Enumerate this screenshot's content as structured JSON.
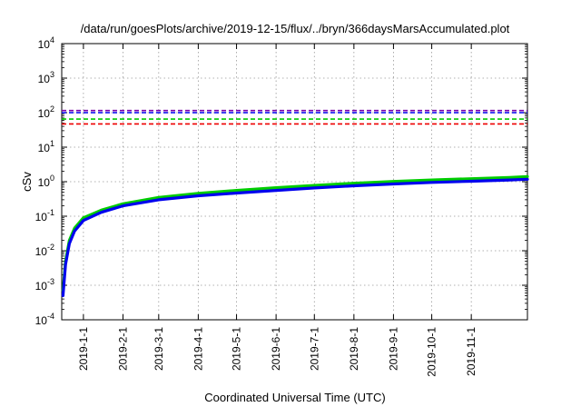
{
  "chart_data": {
    "type": "line",
    "title": "/data/run/goesPlots/archive/2019-12-15/flux/../bryn/366daysMarsAccumulated.plot",
    "xlabel": "Coordinated Universal Time (UTC)",
    "ylabel": "cSv",
    "yscale": "log",
    "ylim": [
      0.0001,
      10000
    ],
    "xlim": [
      "2018-12-15",
      "2019-12-15"
    ],
    "grid": true,
    "x_ticks": [
      "2019-1-1",
      "2019-2-1",
      "2019-3-1",
      "2019-4-1",
      "2019-5-1",
      "2019-6-1",
      "2019-7-1",
      "2019-8-1",
      "2019-9-1",
      "2019-10-1",
      "2019-11-1"
    ],
    "y_ticks": [
      {
        "base": "10",
        "exp": "-4"
      },
      {
        "base": "10",
        "exp": "-3"
      },
      {
        "base": "10",
        "exp": "-2"
      },
      {
        "base": "10",
        "exp": "-1"
      },
      {
        "base": "10",
        "exp": "0"
      },
      {
        "base": "10",
        "exp": "1"
      },
      {
        "base": "10",
        "exp": "2"
      },
      {
        "base": "10",
        "exp": "3"
      },
      {
        "base": "10",
        "exp": "4"
      }
    ],
    "x": [
      "2018-12-16",
      "2018-12-18",
      "2018-12-21",
      "2018-12-25",
      "2019-1-1",
      "2019-1-15",
      "2019-2-1",
      "2019-3-1",
      "2019-4-1",
      "2019-5-1",
      "2019-6-1",
      "2019-7-1",
      "2019-8-1",
      "2019-9-1",
      "2019-10-1",
      "2019-11-1",
      "2019-12-1",
      "2019-12-15"
    ],
    "series": [
      {
        "color": "#00cc00",
        "style": "solid",
        "values": [
          0.0007,
          0.005,
          0.02,
          0.045,
          0.09,
          0.15,
          0.23,
          0.35,
          0.46,
          0.56,
          0.67,
          0.78,
          0.9,
          1.02,
          1.12,
          1.22,
          1.32,
          1.4
        ]
      },
      {
        "color": "#0000ee",
        "style": "solid",
        "values": [
          0.0005,
          0.004,
          0.016,
          0.037,
          0.075,
          0.13,
          0.2,
          0.3,
          0.39,
          0.47,
          0.56,
          0.66,
          0.76,
          0.86,
          0.95,
          1.03,
          1.12,
          1.18
        ]
      },
      {
        "color": "#7700aa",
        "style": "dashed",
        "constant": 115
      },
      {
        "color": "#0000ee",
        "style": "dashed",
        "constant": 100
      },
      {
        "color": "#00cc00",
        "style": "dashed",
        "constant": 65
      },
      {
        "color": "#ee0000",
        "style": "dashed",
        "constant": 47
      }
    ]
  }
}
